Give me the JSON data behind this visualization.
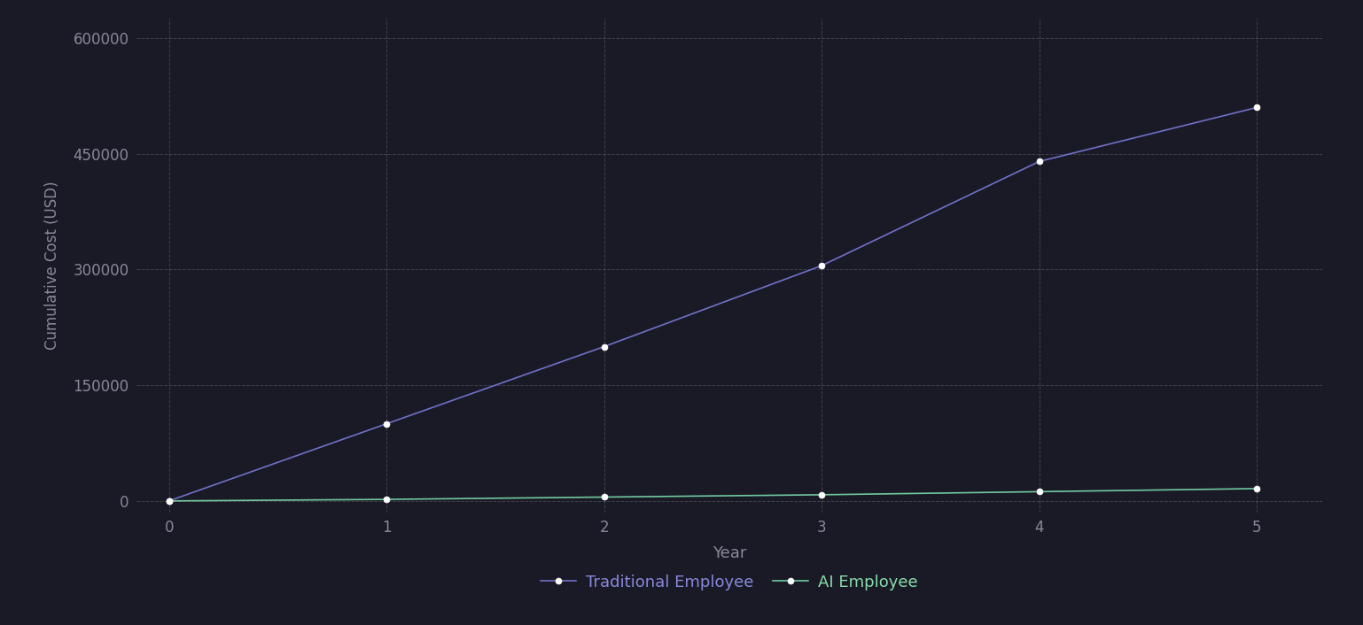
{
  "years": [
    0,
    1,
    2,
    3,
    4,
    5
  ],
  "traditional": [
    0,
    100000,
    200000,
    305000,
    440000,
    510000
  ],
  "ai": [
    0,
    2000,
    5000,
    8000,
    12000,
    16000
  ],
  "traditional_color": "#7070c8",
  "ai_color": "#70c8a0",
  "marker_facecolor": "#ffffff",
  "background_color": "#1a1a26",
  "grid_color": "#888888",
  "text_color": "#888899",
  "legend_traditional_color": "#8888dd",
  "legend_ai_color": "#88ddaa",
  "xlabel": "Year",
  "ylabel": "Cumulative Cost (USD)",
  "yticks": [
    0,
    150000,
    300000,
    450000,
    600000
  ],
  "xticks": [
    0,
    1,
    2,
    3,
    4,
    5
  ],
  "ylim": [
    -15000,
    625000
  ],
  "xlim": [
    -0.15,
    5.3
  ],
  "legend_labels": [
    "Traditional Employee",
    "AI Employee"
  ],
  "line_width": 1.2,
  "marker_size": 5
}
